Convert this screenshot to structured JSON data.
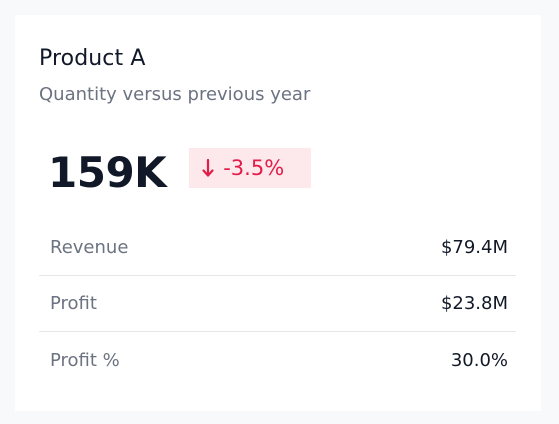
{
  "card": {
    "title": "Product A",
    "subtitle": "Quantity versus previous year",
    "kpi": {
      "value": "159K",
      "delta": "-3.5%",
      "delta_icon": "arrow-down-icon",
      "delta_color": "#e11d48",
      "delta_bg": "#fde8ec"
    },
    "metrics": [
      {
        "label": "Revenue",
        "value": "$79.4M"
      },
      {
        "label": "Profit",
        "value": "$23.8M"
      },
      {
        "label": "Profit %",
        "value": "30.0%"
      }
    ]
  }
}
